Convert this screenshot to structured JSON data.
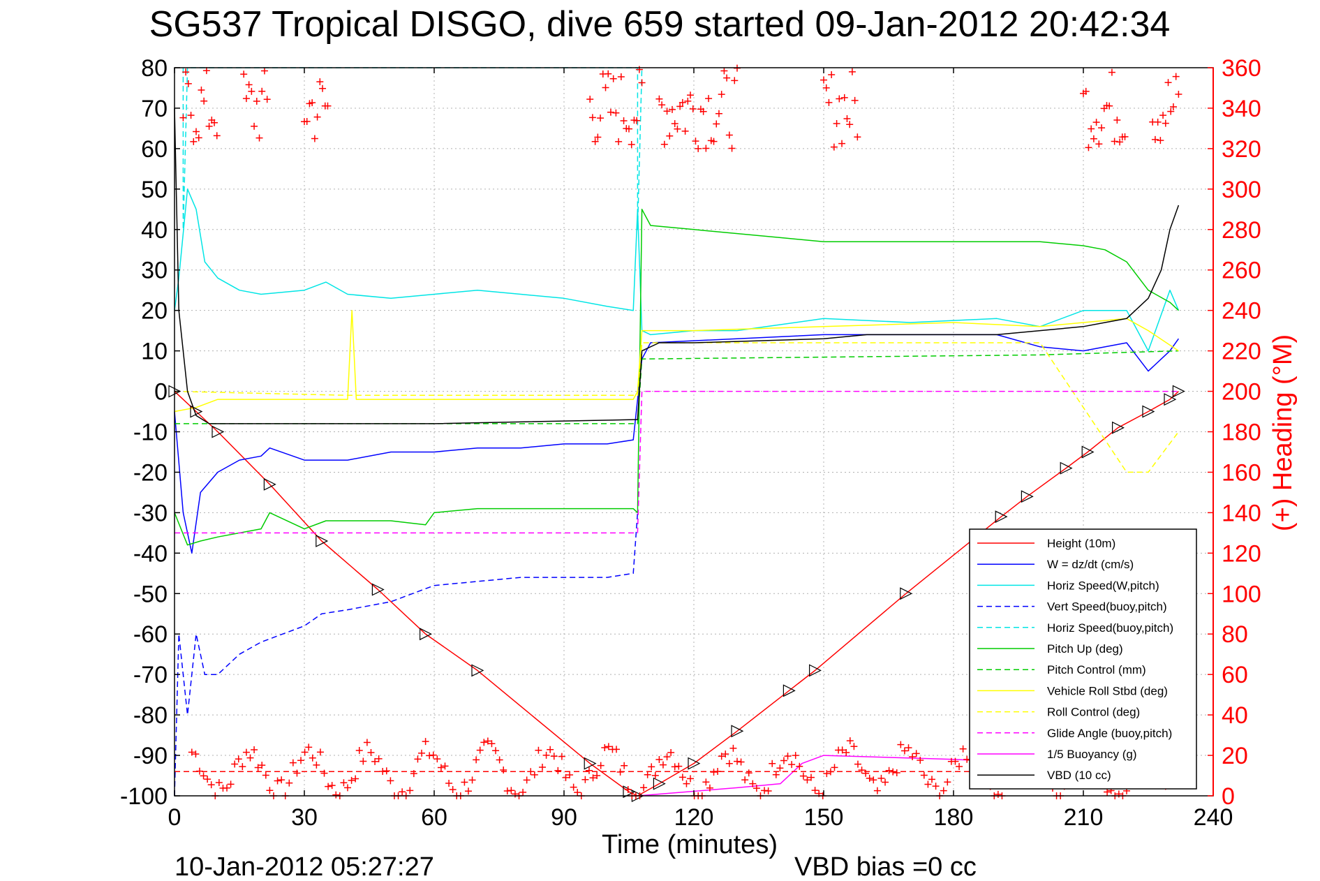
{
  "chart_data": {
    "type": "line",
    "title": "SG537 Tropical DISGO, dive 659 started 09-Jan-2012 20:42:34",
    "xlabel": "Time (minutes)",
    "ylabel": "",
    "ylabel_right": "(+) Heading (°M)",
    "xlim": [
      0,
      240
    ],
    "ylim": [
      -100,
      80
    ],
    "ylim_right": [
      0,
      360
    ],
    "x_ticks": [
      "0",
      "30",
      "60",
      "90",
      "120",
      "150",
      "180",
      "210",
      "240"
    ],
    "y_ticks": [
      "80",
      "70",
      "60",
      "50",
      "40",
      "30",
      "20",
      "10",
      "0",
      "-10",
      "-20",
      "-30",
      "-40",
      "-50",
      "-60",
      "-70",
      "-80",
      "-90",
      "-100"
    ],
    "y_ticks_right": [
      "360",
      "340",
      "320",
      "300",
      "280",
      "260",
      "240",
      "220",
      "200",
      "180",
      "160",
      "140",
      "120",
      "100",
      "80",
      "60",
      "40",
      "20",
      "0"
    ],
    "grid": true,
    "legend_position": "bottom-right",
    "footer_left": "10-Jan-2012 05:27:27",
    "footer_right": "VBD bias =0 cc",
    "colors": {
      "height": "#ff0000",
      "w": "#0000ff",
      "horiz_w": "#00e5e5",
      "vert_buoy": "#0000ff",
      "horiz_buoy": "#00e5e5",
      "pitch": "#00cc00",
      "pitch_ctrl": "#00cc00",
      "roll": "#ffff00",
      "roll_ctrl": "#ffff00",
      "glide": "#ff00ff",
      "buoyancy": "#ff00ff",
      "vbd": "#000000",
      "heading": "#ff0000"
    },
    "series": [
      {
        "key": "height",
        "name": "Height (10m)",
        "style": "solid",
        "x": [
          0,
          5,
          10,
          22,
          34,
          47,
          58,
          70,
          96,
          105,
          107,
          112,
          120,
          130,
          142,
          148,
          169,
          191,
          197,
          206,
          211,
          218,
          225,
          230,
          232
        ],
        "y": [
          0,
          -5,
          -10,
          -23,
          -37,
          -49,
          -60,
          -69,
          -92,
          -99,
          -100,
          -97,
          -92,
          -84,
          -74,
          -69,
          -50,
          -31,
          -26,
          -19,
          -15,
          -9,
          -5,
          -2,
          0
        ]
      },
      {
        "key": "w",
        "name": "W = dz/dt (cm/s)",
        "style": "solid",
        "x": [
          0,
          2,
          4,
          6,
          10,
          15,
          20,
          22,
          30,
          40,
          50,
          60,
          70,
          80,
          90,
          100,
          106,
          108,
          110,
          130,
          150,
          170,
          190,
          200,
          210,
          220,
          225,
          230,
          232
        ],
        "y": [
          -5,
          -30,
          -40,
          -25,
          -20,
          -17,
          -16,
          -14,
          -17,
          -17,
          -15,
          -15,
          -14,
          -14,
          -13,
          -13,
          -12,
          8,
          12,
          13,
          14,
          14,
          14,
          11,
          10,
          12,
          5,
          10,
          13
        ]
      },
      {
        "key": "horiz_w",
        "name": "Horiz Speed(W,pitch)",
        "style": "solid",
        "x": [
          0,
          1,
          3,
          5,
          7,
          10,
          15,
          20,
          30,
          35,
          40,
          50,
          60,
          70,
          80,
          90,
          100,
          106,
          107,
          108,
          110,
          120,
          130,
          150,
          170,
          190,
          200,
          210,
          220,
          225,
          230,
          232
        ],
        "y": [
          20,
          28,
          50,
          45,
          32,
          28,
          25,
          24,
          25,
          27,
          24,
          23,
          24,
          25,
          24,
          23,
          21,
          20,
          45,
          15,
          14,
          15,
          15,
          18,
          17,
          18,
          16,
          20,
          20,
          10,
          25,
          20
        ]
      },
      {
        "key": "vert_buoy",
        "name": "Vert Speed(buoy,pitch)",
        "style": "dashed",
        "x": [
          0,
          1,
          3,
          5,
          7,
          10,
          15,
          20,
          30,
          34,
          40,
          50,
          55,
          60,
          70,
          80,
          90,
          100,
          106,
          107
        ],
        "y": [
          -100,
          -60,
          -80,
          -60,
          -70,
          -70,
          -65,
          -62,
          -58,
          -55,
          -54,
          -52,
          -50,
          -48,
          -47,
          -46,
          -46,
          -46,
          -45,
          -30
        ]
      },
      {
        "key": "horiz_buoy",
        "name": "Horiz Speed(buoy,pitch)",
        "style": "dashed",
        "x": [
          2,
          2,
          3,
          107,
          107,
          108
        ],
        "y": [
          80,
          40,
          80,
          80,
          40,
          80
        ]
      },
      {
        "key": "pitch",
        "name": "Pitch Up (deg)",
        "style": "solid",
        "x": [
          0,
          3,
          6,
          10,
          20,
          22,
          30,
          35,
          50,
          58,
          60,
          70,
          80,
          90,
          100,
          106,
          107,
          108,
          110,
          120,
          140,
          150,
          160,
          180,
          200,
          210,
          215,
          220,
          225,
          230,
          232
        ],
        "y": [
          -30,
          -38,
          -37,
          -36,
          -34,
          -30,
          -34,
          -32,
          -32,
          -33,
          -30,
          -29,
          -29,
          -29,
          -29,
          -29,
          -30,
          45,
          41,
          40,
          38,
          37,
          37,
          37,
          37,
          36,
          35,
          32,
          25,
          22,
          20
        ]
      },
      {
        "key": "pitch_ctrl",
        "name": "Pitch Control (mm)",
        "style": "dashed",
        "x": [
          0,
          60,
          106,
          107,
          108,
          200,
          232
        ],
        "y": [
          -8,
          -8,
          -8,
          -8,
          8,
          9,
          10
        ]
      },
      {
        "key": "roll",
        "name": "Vehicle Roll Stbd (deg)",
        "style": "solid",
        "x": [
          0,
          5,
          10,
          40,
          41,
          42,
          106,
          107,
          108,
          120,
          150,
          180,
          200,
          220,
          225,
          232
        ],
        "y": [
          -5,
          -4,
          -2,
          -2,
          20,
          -2,
          -2,
          0,
          15,
          15,
          16,
          17,
          16,
          18,
          15,
          10
        ]
      },
      {
        "key": "roll_ctrl",
        "name": "Roll Control (deg)",
        "style": "dashed",
        "x": [
          0,
          40,
          106,
          107,
          108,
          150,
          200,
          220,
          225,
          232
        ],
        "y": [
          0,
          -1,
          -1,
          -1,
          12,
          12,
          12,
          -20,
          -20,
          -10
        ]
      },
      {
        "key": "glide",
        "name": "Glide Angle (buoy,pitch)",
        "style": "dashed",
        "x": [
          0,
          106,
          107,
          108,
          232
        ],
        "y": [
          -35,
          -35,
          -35,
          0,
          0
        ]
      },
      {
        "key": "buoyancy",
        "name": "1/5 Buoyancy (g)",
        "style": "solid",
        "x": [
          107,
          130,
          140,
          145,
          150,
          180,
          200,
          220
        ],
        "y": [
          -100,
          -98,
          -97,
          -92,
          -90,
          -91,
          -92,
          -94
        ]
      },
      {
        "key": "vbd",
        "name": "VBD (10 cc)",
        "style": "solid",
        "x": [
          0,
          1,
          3,
          5,
          8,
          60,
          106,
          107,
          108,
          112,
          120,
          150,
          160,
          190,
          200,
          210,
          215,
          220,
          225,
          228,
          230,
          232
        ],
        "y": [
          70,
          20,
          0,
          -6,
          -8,
          -8,
          -7,
          -7,
          10,
          12,
          12,
          13,
          14,
          14,
          15,
          16,
          17,
          18,
          23,
          30,
          40,
          46
        ]
      }
    ],
    "heading": {
      "name": "(+) Heading",
      "marker": "+",
      "bottom_band_center": 12,
      "top_band_min": 320,
      "mean_line": 12
    }
  }
}
